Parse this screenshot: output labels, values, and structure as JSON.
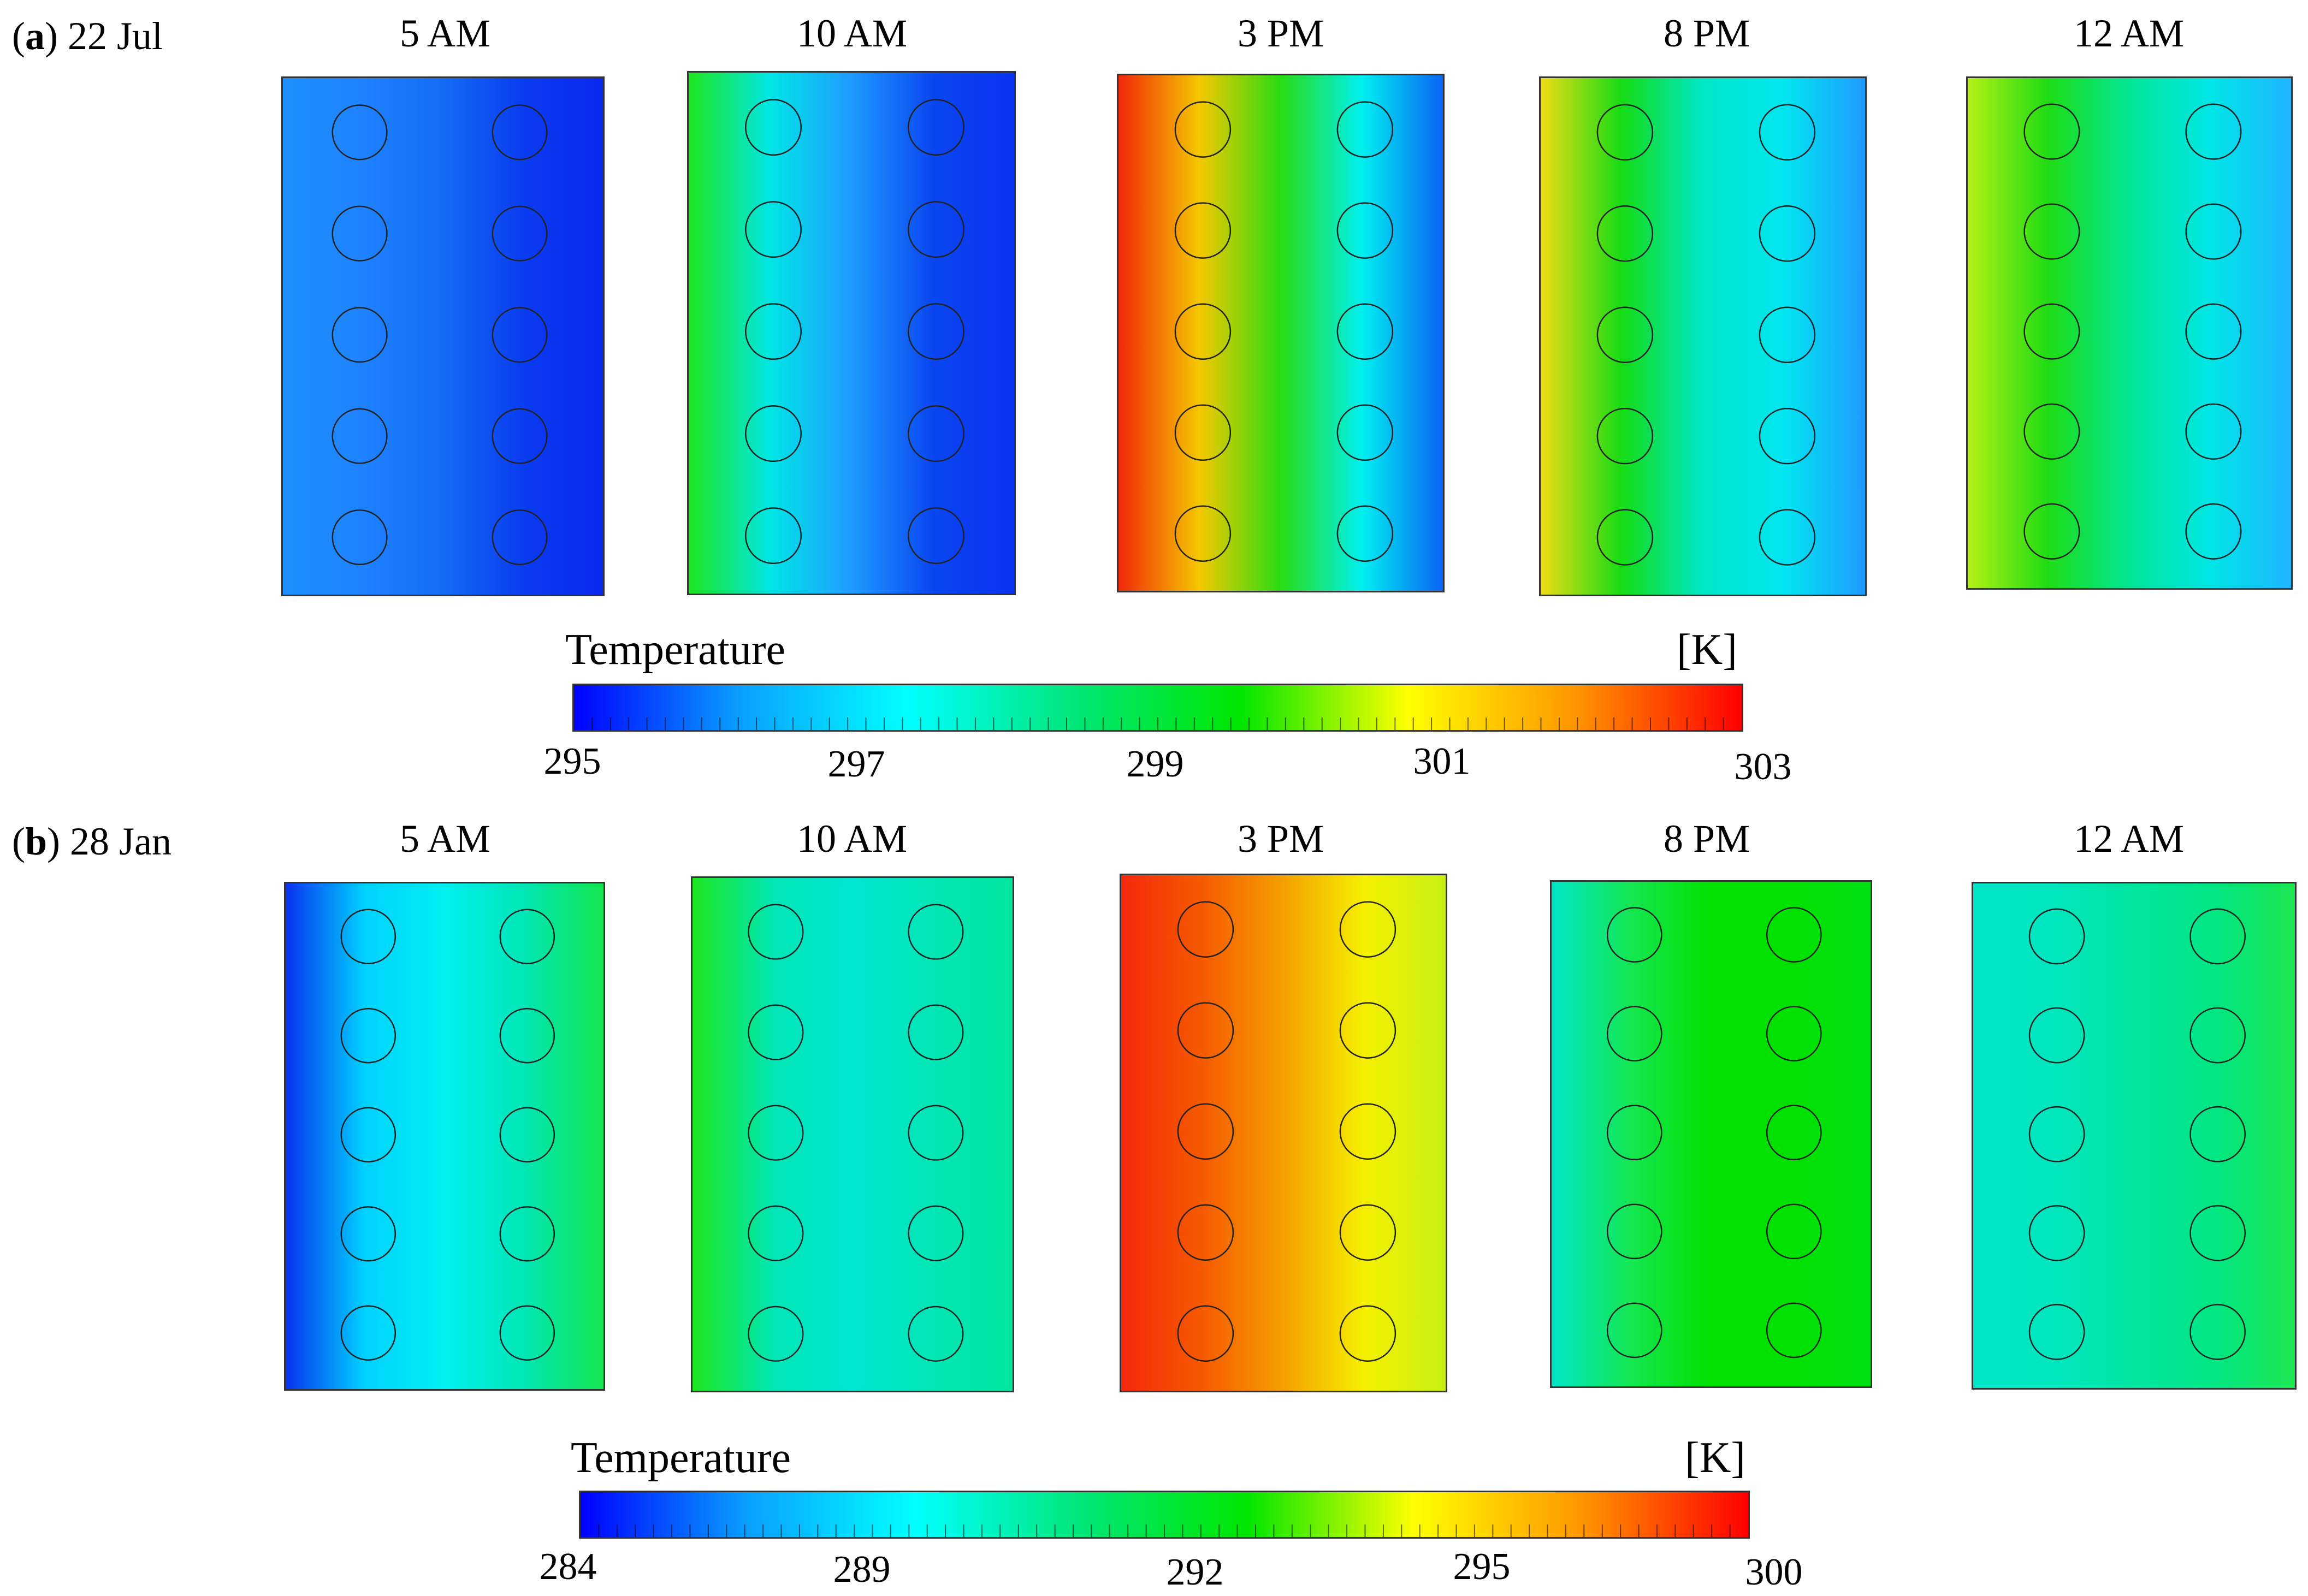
{
  "rows": [
    {
      "letter": "a",
      "date": "22 Jul",
      "times": [
        "5 AM",
        "10 AM",
        "3 PM",
        "8 PM",
        "12 AM"
      ],
      "colorbar": {
        "title": "Temperature",
        "unit": "[K]",
        "ticks": [
          "295",
          "297",
          "299",
          "301",
          "303"
        ]
      }
    },
    {
      "letter": "b",
      "date": "28 Jan",
      "times": [
        "5 AM",
        "10 AM",
        "3 PM",
        "8 PM",
        "12 AM"
      ],
      "colorbar": {
        "title": "Temperature",
        "unit": "[K]",
        "ticks": [
          "284",
          "289",
          "292",
          "295",
          "300"
        ]
      }
    }
  ],
  "panel_gradients": [
    [
      [
        "#1e90ff",
        "#1e82ff",
        "#146cf5",
        "#0a3cf0",
        "#0a28f0"
      ],
      [
        "#1ee61e",
        "#00e6e6",
        "#1e9bff",
        "#0a46f0",
        "#0a32f0"
      ],
      [
        "#f0280a",
        "#f5c800",
        "#28dc14",
        "#00f0f0",
        "#0a64f5"
      ],
      [
        "#f0dc14",
        "#14dc14",
        "#00e6c8",
        "#00e6f0",
        "#1e9bff"
      ],
      [
        "#b4f014",
        "#1edc14",
        "#00e696",
        "#00e6e6",
        "#1eb4ff"
      ]
    ],
    [
      [
        "#0a32f0",
        "#00d2ff",
        "#00f0f0",
        "#00e6b4",
        "#14e650"
      ],
      [
        "#1ee61e",
        "#00e6b4",
        "#00e6d2",
        "#00e6b4",
        "#00e6a0"
      ],
      [
        "#f5280a",
        "#f55a00",
        "#f5a000",
        "#f5f000",
        "#c8f014"
      ],
      [
        "#00e6c8",
        "#14e650",
        "#00e100",
        "#00e100",
        "#00e114"
      ],
      [
        "#00e6c8",
        "#00e6be",
        "#00e6a0",
        "#00e682",
        "#1ee650"
      ]
    ]
  ],
  "colorbar_colors": [
    "#0000ff",
    "#0aa0ff",
    "#00ffff",
    "#00e678",
    "#00e600",
    "#ffff00",
    "#ff9600",
    "#ff0000"
  ]
}
